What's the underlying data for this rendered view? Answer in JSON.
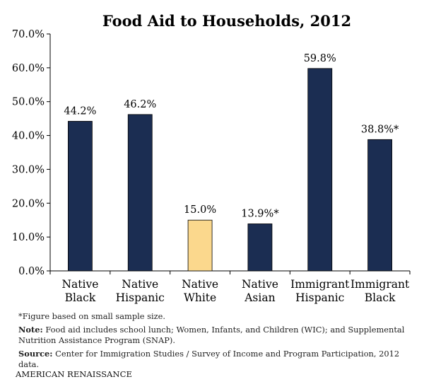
{
  "notes": {
    "footnote": "*Figure based on small sample size.",
    "note_label": "Note:",
    "note_text": "Food aid includes school lunch; Women, Infants, and Children (WIC); and Supplemental Nutrition Assistance Program (SNAP).",
    "source_label": "Source:",
    "source_text": "Center for Immigration Studies / Survey of Income and Program Participation, 2012 data."
  },
  "brand": "AMERICAN RENAISSANCE",
  "colors": {
    "bar_default": "#1b2d52",
    "bar_highlight": "#fbd88d",
    "axis": "#000000"
  },
  "chart_data": {
    "type": "bar",
    "title": "Food Aid to Households, 2012",
    "categories": [
      [
        "Native",
        "Black"
      ],
      [
        "Native",
        "Hispanic"
      ],
      [
        "Native",
        "White"
      ],
      [
        "Native",
        "Asian"
      ],
      [
        "Immigrant",
        "Hispanic"
      ],
      [
        "Immigrant",
        "Black"
      ]
    ],
    "values": [
      44.2,
      46.2,
      15.0,
      13.9,
      59.8,
      38.8
    ],
    "value_labels": [
      "44.2%",
      "46.2%",
      "15.0%",
      "13.9%*",
      "59.8%",
      "38.8%*"
    ],
    "highlight_index": 2,
    "ylim": [
      0,
      70
    ],
    "yticks": [
      0,
      10,
      20,
      30,
      40,
      50,
      60,
      70
    ],
    "ytick_labels": [
      "0.0%",
      "10.0%",
      "20.0%",
      "30.0%",
      "40.0%",
      "50.0%",
      "60.0%",
      "70.0%"
    ],
    "xlabel": "",
    "ylabel": "",
    "grid": false
  }
}
